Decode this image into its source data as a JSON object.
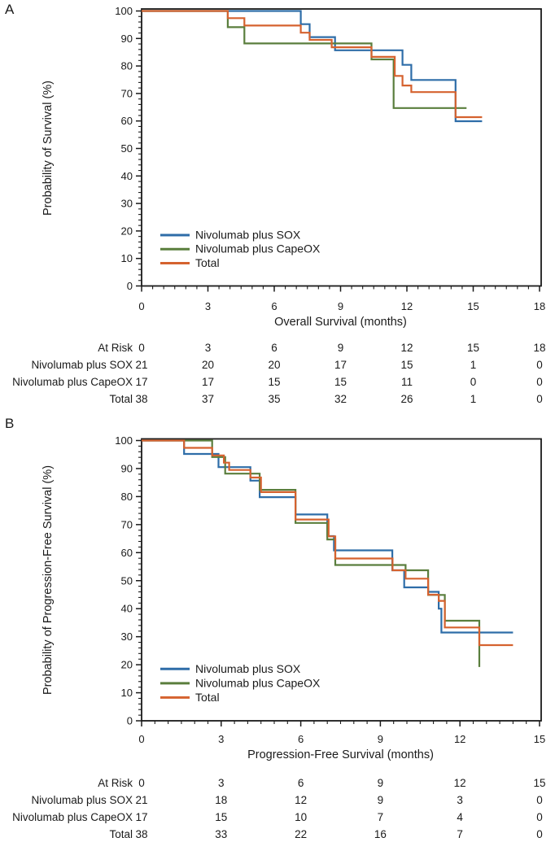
{
  "colors": {
    "ink": "#1a1a1a",
    "background": "#ffffff",
    "sox": "#2e6da8",
    "capeox": "#5a7e3d",
    "total": "#d5622f"
  },
  "chart_data": [
    {
      "id": "overall-survival",
      "type": "line",
      "step": true,
      "panel_label": "A",
      "xlabel": "Overall Survival (months)",
      "ylabel": "Probability of Survival (%)",
      "xlim": [
        0,
        18
      ],
      "ylim": [
        0,
        100
      ],
      "x_ticks": [
        0,
        3,
        6,
        9,
        12,
        15,
        18
      ],
      "y_ticks": [
        0,
        10,
        20,
        30,
        40,
        50,
        60,
        70,
        80,
        90,
        100
      ],
      "x_minor_step": 0.5,
      "y_minor_step": 2,
      "grid": false,
      "legend_position": "lower-left",
      "series": [
        {
          "name": "Nivolumab plus SOX",
          "color": "#2e6da8",
          "points": [
            [
              0,
              100
            ],
            [
              7.2,
              95.2
            ],
            [
              7.6,
              90.5
            ],
            [
              8.75,
              85.7
            ],
            [
              11.8,
              80.4
            ],
            [
              12.2,
              74.9
            ],
            [
              14.2,
              59.9
            ],
            [
              15.4,
              59.9
            ]
          ]
        },
        {
          "name": "Nivolumab plus CapeOX",
          "color": "#5a7e3d",
          "points": [
            [
              0,
              100
            ],
            [
              3.9,
              94.1
            ],
            [
              4.65,
              88.2
            ],
            [
              10.4,
              82.4
            ],
            [
              11.4,
              64.7
            ],
            [
              14.7,
              64.7
            ]
          ]
        },
        {
          "name": "Total",
          "color": "#d5622f",
          "points": [
            [
              0,
              100
            ],
            [
              3.9,
              97.4
            ],
            [
              4.65,
              94.7
            ],
            [
              7.2,
              92.1
            ],
            [
              7.6,
              89.5
            ],
            [
              8.6,
              86.8
            ],
            [
              10.4,
              83.3
            ],
            [
              11.45,
              76.4
            ],
            [
              11.8,
              72.9
            ],
            [
              12.2,
              70.5
            ],
            [
              14.2,
              61.4
            ],
            [
              15.4,
              61.4
            ]
          ]
        }
      ],
      "at_risk_table": {
        "header_label": "At Risk",
        "columns": [
          0,
          3,
          6,
          9,
          12,
          15,
          18
        ],
        "rows": [
          {
            "label": "Nivolumab plus SOX",
            "values": [
              21,
              20,
              20,
              17,
              15,
              1,
              0
            ]
          },
          {
            "label": "Nivolumab plus CapeOX",
            "values": [
              17,
              17,
              15,
              15,
              11,
              0,
              0
            ]
          },
          {
            "label": "Total",
            "values": [
              38,
              37,
              35,
              32,
              26,
              1,
              0
            ]
          }
        ]
      }
    },
    {
      "id": "progression-free-survival",
      "type": "line",
      "step": true,
      "panel_label": "B",
      "xlabel": "Progression-Free Survival (months)",
      "ylabel": "Probability of Progression-Free Survival (%)",
      "xlim": [
        0,
        15
      ],
      "ylim": [
        0,
        100
      ],
      "x_ticks": [
        0,
        3,
        6,
        9,
        12,
        15
      ],
      "y_ticks": [
        0,
        10,
        20,
        30,
        40,
        50,
        60,
        70,
        80,
        90,
        100
      ],
      "x_minor_step": 0.5,
      "y_minor_step": 2,
      "grid": false,
      "legend_position": "lower-left",
      "series": [
        {
          "name": "Nivolumab plus SOX",
          "color": "#2e6da8",
          "points": [
            [
              0,
              100
            ],
            [
              1.6,
              95.2
            ],
            [
              2.9,
              90.5
            ],
            [
              4.1,
              85.7
            ],
            [
              4.45,
              79.8
            ],
            [
              5.8,
              73.6
            ],
            [
              7.0,
              65.9
            ],
            [
              7.25,
              60.8
            ],
            [
              9.45,
              53.7
            ],
            [
              9.9,
              47.6
            ],
            [
              10.8,
              46.0
            ],
            [
              11.2,
              40.0
            ],
            [
              11.3,
              31.5
            ],
            [
              14.0,
              31.5
            ]
          ]
        },
        {
          "name": "Nivolumab plus CapeOX",
          "color": "#5a7e3d",
          "points": [
            [
              0,
              100
            ],
            [
              2.66,
              94.1
            ],
            [
              3.15,
              88.2
            ],
            [
              4.45,
              82.4
            ],
            [
              5.8,
              70.6
            ],
            [
              7.0,
              64.7
            ],
            [
              7.3,
              55.6
            ],
            [
              9.95,
              53.7
            ],
            [
              10.8,
              44.9
            ],
            [
              11.43,
              35.7
            ],
            [
              12.73,
              19.2
            ]
          ]
        },
        {
          "name": "Total",
          "color": "#d5622f",
          "points": [
            [
              0,
              100
            ],
            [
              1.6,
              97.4
            ],
            [
              2.66,
              94.7
            ],
            [
              3.1,
              92.1
            ],
            [
              3.3,
              89.5
            ],
            [
              4.1,
              86.8
            ],
            [
              4.5,
              81.6
            ],
            [
              5.8,
              71.8
            ],
            [
              7.05,
              65.8
            ],
            [
              7.3,
              57.9
            ],
            [
              9.46,
              53.7
            ],
            [
              9.95,
              50.7
            ],
            [
              10.8,
              45.0
            ],
            [
              11.2,
              42.8
            ],
            [
              11.43,
              33.3
            ],
            [
              12.73,
              27.0
            ],
            [
              14.0,
              27.0
            ]
          ]
        }
      ],
      "at_risk_table": {
        "header_label": "At Risk",
        "columns": [
          0,
          3,
          6,
          9,
          12,
          15
        ],
        "rows": [
          {
            "label": "Nivolumab plus SOX",
            "values": [
              21,
              18,
              12,
              9,
              3,
              0
            ]
          },
          {
            "label": "Nivolumab plus CapeOX",
            "values": [
              17,
              15,
              10,
              7,
              4,
              0
            ]
          },
          {
            "label": "Total",
            "values": [
              38,
              33,
              22,
              16,
              7,
              0
            ]
          }
        ]
      }
    }
  ]
}
